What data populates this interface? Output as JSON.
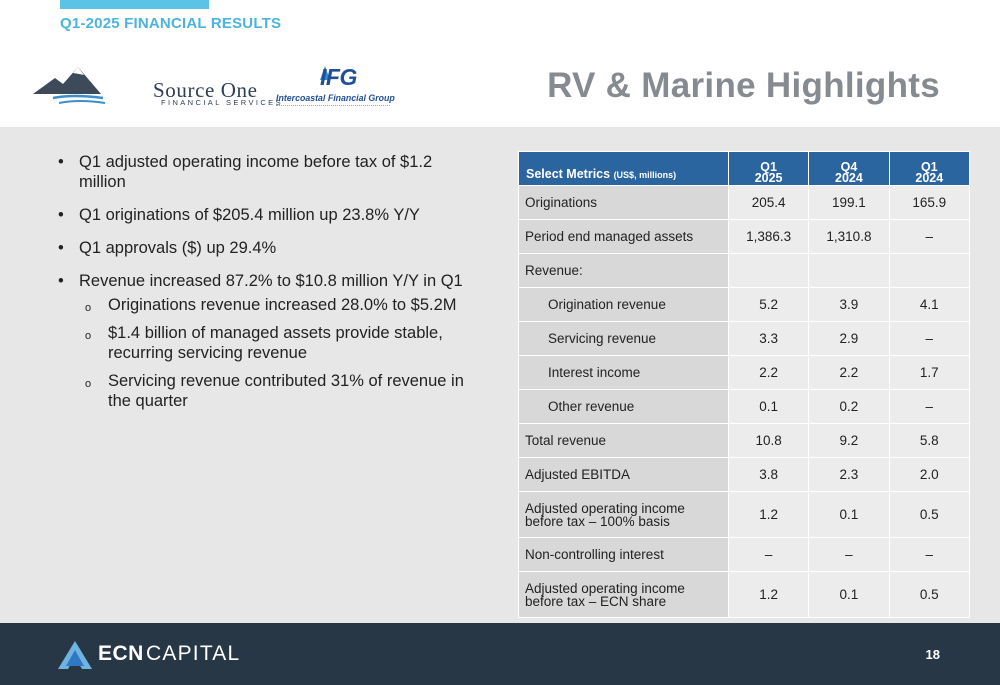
{
  "header": {
    "section_label": "Q1-2025 FINANCIAL RESULTS",
    "title": "RV & Marine Highlights"
  },
  "logos": {
    "source_one": {
      "brand": "Source One",
      "sub": "FINANCIAL SERVICES"
    },
    "ifg": {
      "mark": "IFG",
      "name": "Intercoastal Financial Group"
    }
  },
  "bullets": [
    {
      "text": "Q1 adjusted operating income before tax of $1.2 million"
    },
    {
      "text": "Q1 originations of $205.4 million up 23.8% Y/Y"
    },
    {
      "text": "Q1 approvals ($) up 29.4%"
    },
    {
      "text": "Revenue increased 87.2% to $10.8 million Y/Y in Q1"
    }
  ],
  "sub_bullets": [
    {
      "text": "Originations revenue increased 28.0% to $5.2M"
    },
    {
      "text": "$1.4 billion of managed assets provide stable, recurring servicing revenue"
    },
    {
      "text": "Servicing revenue contributed 31% of revenue in the quarter"
    }
  ],
  "bullet_marker": "•",
  "sub_bullet_marker": "o",
  "table": {
    "metric_header": "Select Metrics",
    "metric_header_units": "(US$, millions)",
    "columns": [
      {
        "line1": "Q1",
        "line2": "2025"
      },
      {
        "line1": "Q4",
        "line2": "2024"
      },
      {
        "line1": "Q1",
        "line2": "2024"
      }
    ],
    "rows": [
      {
        "label": "Originations",
        "values": [
          "205.4",
          "199.1",
          "165.9"
        ]
      },
      {
        "label": "Period end managed assets",
        "values": [
          "1,386.3",
          "1,310.8",
          "–"
        ]
      },
      {
        "label": "Revenue:",
        "values": [
          "",
          "",
          ""
        ]
      },
      {
        "label": "Origination revenue",
        "values": [
          "5.2",
          "3.9",
          "4.1"
        ]
      },
      {
        "label": "Servicing revenue",
        "values": [
          "3.3",
          "2.9",
          "–"
        ]
      },
      {
        "label": "Interest income",
        "values": [
          "2.2",
          "2.2",
          "1.7"
        ]
      },
      {
        "label": "Other revenue",
        "values": [
          "0.1",
          "0.2",
          "–"
        ]
      },
      {
        "label": "Total revenue",
        "values": [
          "10.8",
          "9.2",
          "5.8"
        ]
      },
      {
        "label": "Adjusted EBITDA",
        "values": [
          "3.8",
          "2.3",
          "2.0"
        ]
      },
      {
        "label": "Adjusted operating income before tax – 100% basis",
        "values": [
          "1.2",
          "0.1",
          "0.5"
        ]
      },
      {
        "label": "Non-controlling interest",
        "values": [
          "–",
          "–",
          "–"
        ]
      },
      {
        "label": "Adjusted operating income before tax – ECN share",
        "values": [
          "1.2",
          "0.1",
          "0.5"
        ]
      }
    ]
  },
  "footer": {
    "brand_bold": "ECN",
    "brand_light": "CAPITAL",
    "page_number": "18"
  },
  "colors": {
    "accent": "#5bc3e6",
    "title_gray": "#868b91",
    "table_header": "#2a65a0",
    "footer_bg": "#283746",
    "content_bg": "#e7e7e7"
  }
}
